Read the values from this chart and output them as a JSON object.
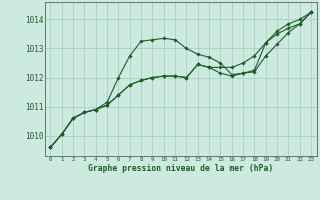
{
  "background_color": "#cceae0",
  "grid_color": "#aacfc5",
  "line_color": "#1e5c28",
  "text_color": "#1e5c28",
  "xlabel": "Graphe pression niveau de la mer (hPa)",
  "xlim": [
    -0.5,
    23.5
  ],
  "ylim": [
    1009.3,
    1014.6
  ],
  "yticks": [
    1010,
    1011,
    1012,
    1013,
    1014
  ],
  "xticks": [
    0,
    1,
    2,
    3,
    4,
    5,
    6,
    7,
    8,
    9,
    10,
    11,
    12,
    13,
    14,
    15,
    16,
    17,
    18,
    19,
    20,
    21,
    22,
    23
  ],
  "curves": [
    {
      "x": [
        0,
        1,
        2,
        3,
        4,
        5,
        6,
        7,
        8,
        9,
        10,
        11,
        12,
        13,
        14,
        15,
        16,
        17,
        18,
        19,
        20,
        21,
        22,
        23
      ],
      "y": [
        1009.6,
        1010.05,
        1010.6,
        1010.8,
        1010.9,
        1011.15,
        1012.0,
        1012.75,
        1013.25,
        1013.3,
        1013.35,
        1013.3,
        1013.0,
        1012.8,
        1012.7,
        1012.5,
        1012.1,
        1012.15,
        1012.25,
        1013.2,
        1013.6,
        1013.85,
        1014.0,
        1014.25
      ]
    },
    {
      "x": [
        0,
        1,
        2,
        3,
        4,
        5,
        6,
        7,
        8,
        9,
        10,
        11,
        12,
        13,
        14,
        15,
        16,
        17,
        18,
        19,
        20,
        21,
        22,
        23
      ],
      "y": [
        1009.6,
        1010.05,
        1010.6,
        1010.8,
        1010.9,
        1011.05,
        1011.4,
        1011.75,
        1011.9,
        1012.0,
        1012.05,
        1012.05,
        1012.0,
        1012.45,
        1012.35,
        1012.15,
        1012.05,
        1012.15,
        1012.2,
        1012.75,
        1013.15,
        1013.55,
        1013.85,
        1014.25
      ]
    },
    {
      "x": [
        0,
        1,
        2,
        3,
        4,
        5,
        6,
        7,
        8,
        9,
        10,
        11,
        12,
        13,
        14,
        15,
        16,
        17,
        18,
        19,
        20,
        21,
        22,
        23
      ],
      "y": [
        1009.6,
        1010.05,
        1010.6,
        1010.8,
        1010.9,
        1011.05,
        1011.4,
        1011.75,
        1011.9,
        1012.0,
        1012.05,
        1012.05,
        1012.0,
        1012.45,
        1012.35,
        1012.35,
        1012.35,
        1012.5,
        1012.75,
        1013.2,
        1013.5,
        1013.7,
        1013.85,
        1014.25
      ]
    }
  ]
}
